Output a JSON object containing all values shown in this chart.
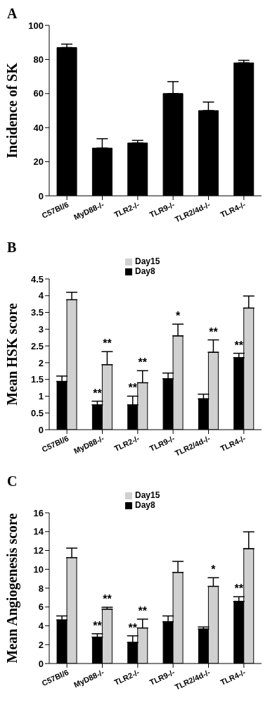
{
  "chart_data": [
    {
      "type": "bar",
      "title": "A",
      "ylabel": "Incidence of SK",
      "categories": [
        "C57Bl/6",
        "MyD88-/-",
        "TLR2-/-",
        "TLR9-/-",
        "TLR2/4d-/-",
        "TLR4-/-"
      ],
      "series": [
        {
          "color": "#000000",
          "values": [
            87,
            28,
            31,
            60,
            50,
            78
          ],
          "errors": [
            [
              87,
              89
            ],
            [
              28,
              33.5
            ],
            [
              31,
              32.5
            ],
            [
              60,
              67
            ],
            [
              50,
              55
            ],
            [
              78,
              79.5
            ]
          ]
        }
      ],
      "ylim": [
        0,
        100
      ],
      "yticks": [
        0,
        20,
        40,
        60,
        80,
        100
      ],
      "grid": false
    },
    {
      "type": "bar",
      "title": "B",
      "ylabel": "Mean  HSK score",
      "categories": [
        "C57Bl/6",
        "MyD88-/-",
        "TLR2-/-",
        "TLR9-/-",
        "TLR2/4d-/-",
        "TLR4-/-"
      ],
      "series": [
        {
          "name": "Day8",
          "color": "#000000",
          "values": [
            1.44,
            0.74,
            0.74,
            1.52,
            0.92,
            2.15
          ],
          "errors": [
            [
              1.44,
              1.6
            ],
            [
              0.74,
              0.85
            ],
            [
              0.74,
              1.0
            ],
            [
              1.52,
              1.69
            ],
            [
              0.92,
              1.06
            ],
            [
              2.15,
              2.28
            ]
          ]
        },
        {
          "name": "Day15",
          "color": "#d0d0d0",
          "values": [
            3.88,
            1.94,
            1.4,
            2.8,
            2.31,
            3.63
          ],
          "errors": [
            [
              3.88,
              4.1
            ],
            [
              1.94,
              2.33
            ],
            [
              1.4,
              1.76
            ],
            [
              2.8,
              3.15
            ],
            [
              2.31,
              2.68
            ],
            [
              3.63,
              3.99
            ]
          ]
        }
      ],
      "ylim": [
        0,
        4.5
      ],
      "yticks": [
        0,
        0.5,
        1,
        1.5,
        2,
        2.5,
        3,
        3.5,
        4,
        4.5
      ],
      "grid": false,
      "legend": "top",
      "annotations": [
        {
          "text": "**",
          "x": "MyD88-/-",
          "y": 0.85
        },
        {
          "text": "**",
          "x": "MyD88-/-",
          "y": 2.33
        },
        {
          "text": "**",
          "x": "TLR2-/-",
          "y": 1.0
        },
        {
          "text": "**",
          "x": "TLR2-/-",
          "y": 1.76
        },
        {
          "text": "*",
          "x": "TLR9-/-",
          "y": 3.15
        },
        {
          "text": "**",
          "x": "TLR2/4d-/-",
          "y": 2.68
        },
        {
          "text": "**",
          "x": "TLR4-/-",
          "y": 2.28
        }
      ]
    },
    {
      "type": "bar",
      "title": "C",
      "ylabel": "Mean Angiogenesis score",
      "categories": [
        "C57Bl/6",
        "MyD88-/-",
        "TLR2-/-",
        "TLR9-/-",
        "TLR2/4d-/-",
        "TLR4-/-"
      ],
      "series": [
        {
          "name": "Day8",
          "color": "#000000",
          "values": [
            4.62,
            2.8,
            2.24,
            4.44,
            3.66,
            6.6
          ],
          "errors": [
            [
              4.62,
              5.05
            ],
            [
              2.8,
              3.16
            ],
            [
              2.24,
              2.94
            ],
            [
              4.44,
              5.05
            ],
            [
              3.66,
              3.88
            ],
            [
              6.6,
              7.09
            ]
          ]
        },
        {
          "name": "Day15",
          "color": "#d0d0d0",
          "values": [
            11.24,
            5.77,
            3.77,
            9.67,
            8.19,
            12.19
          ],
          "errors": [
            [
              11.24,
              12.25
            ],
            [
              5.77,
              5.97
            ],
            [
              3.77,
              4.71
            ],
            [
              9.67,
              10.84
            ],
            [
              8.19,
              9.11
            ],
            [
              12.19,
              13.98
            ]
          ]
        }
      ],
      "ylim": [
        0,
        16
      ],
      "yticks": [
        0,
        2,
        4,
        6,
        8,
        10,
        12,
        14,
        16
      ],
      "grid": false,
      "legend": "top",
      "annotations": [
        {
          "text": "**",
          "x": "MyD88-/-",
          "y": 3.16
        },
        {
          "text": "**",
          "x": "MyD88-/-",
          "y": 5.97
        },
        {
          "text": "**",
          "x": "TLR2-/-",
          "y": 2.94
        },
        {
          "text": "**",
          "x": "TLR2-/-",
          "y": 4.71
        },
        {
          "text": "*",
          "x": "TLR2/4d-/-",
          "y": 9.11
        },
        {
          "text": "**",
          "x": "TLR4-/-",
          "y": 7.09
        }
      ]
    }
  ]
}
